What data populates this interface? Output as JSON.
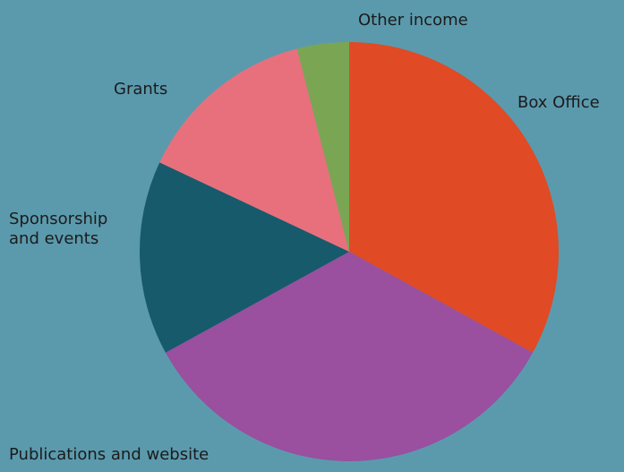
{
  "chart_data": {
    "type": "pie",
    "categories": [
      "Box Office",
      "Publications and website",
      "Sponsorship and events",
      "Grants",
      "Other income"
    ],
    "values": [
      33,
      34,
      15,
      14,
      4
    ],
    "colors": [
      "#e04a25",
      "#9a4f9f",
      "#175a6b",
      "#e8707c",
      "#7aa653"
    ]
  }
}
